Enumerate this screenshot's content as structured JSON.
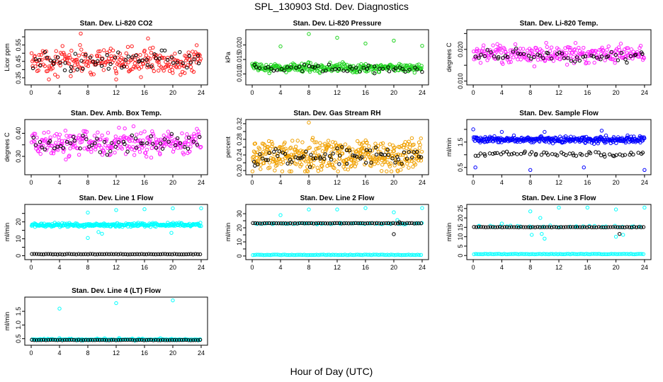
{
  "page": {
    "title": "SPL_130903  Std. Dev. Diagnostics",
    "x_axis_label": "Hour of Day (UTC)"
  },
  "chart_data": [
    {
      "id": "co2",
      "type": "scatter",
      "title": "Stan. Dev. Li-820 CO2",
      "xlabel": "",
      "ylabel": "Licor ppm",
      "xlim": [
        0,
        24
      ],
      "xticks": [
        0,
        4,
        8,
        12,
        16,
        20,
        24
      ],
      "ylim": [
        0.32,
        0.63
      ],
      "yticks": [
        0.35,
        0.4,
        0.45,
        0.5,
        0.55,
        0.6
      ],
      "ytick_labels": [
        "0.35",
        "",
        "0.45",
        "",
        "0.55",
        ""
      ],
      "series": [
        {
          "color": "#ff2020",
          "count": 260,
          "center": 0.45,
          "spread": 0.09,
          "lo": 0.33,
          "hi": 0.56,
          "outliers": [
            [
              7,
              0.62
            ],
            [
              16.5,
              0.59
            ],
            [
              2.5,
              0.34
            ],
            [
              12,
              0.34
            ]
          ]
        },
        {
          "color": "#000000",
          "count": 60,
          "center": 0.45,
          "spread": 0.07,
          "lo": 0.36,
          "hi": 0.53,
          "outliers": []
        }
      ]
    },
    {
      "id": "pressure",
      "type": "scatter",
      "title": "Stan. Dev. Li-820 Pressure",
      "xlabel": "",
      "ylabel": "kPa",
      "xlim": [
        0,
        24
      ],
      "xticks": [
        0,
        4,
        8,
        12,
        16,
        20,
        24
      ],
      "ylim": [
        0.007,
        0.0245
      ],
      "yticks": [
        0.01,
        0.015,
        0.02
      ],
      "ytick_labels": [
        "0.010",
        "0.015",
        "0.020"
      ],
      "series": [
        {
          "color": "#1fd31f",
          "count": 300,
          "center": 0.0122,
          "spread": 0.0018,
          "lo": 0.0088,
          "hi": 0.0145,
          "outliers": [
            [
              0,
              0.0135
            ],
            [
              4,
              0.0195
            ],
            [
              8,
              0.0238
            ],
            [
              12,
              0.0225
            ],
            [
              16,
              0.0205
            ],
            [
              20,
              0.0215
            ],
            [
              24,
              0.0197
            ]
          ]
        },
        {
          "color": "#000000",
          "count": 50,
          "center": 0.0118,
          "spread": 0.0016,
          "lo": 0.009,
          "hi": 0.014,
          "outliers": []
        }
      ]
    },
    {
      "id": "temp",
      "type": "scatter",
      "title": "Stan. Dev. Li-820 Temp.",
      "xlabel": "",
      "ylabel": "degrees C",
      "xlim": [
        0,
        24
      ],
      "xticks": [
        0,
        4,
        8,
        12,
        16,
        20,
        24
      ],
      "ylim": [
        0.0095,
        0.0255
      ],
      "yticks": [
        0.01,
        0.015,
        0.02,
        0.025
      ],
      "ytick_labels": [
        "0.010",
        "",
        "0.020",
        ""
      ],
      "series": [
        {
          "color": "#ff1fff",
          "count": 260,
          "center": 0.0185,
          "spread": 0.0035,
          "lo": 0.01,
          "hi": 0.0255,
          "outliers": []
        },
        {
          "color": "#000000",
          "count": 55,
          "center": 0.018,
          "spread": 0.0025,
          "lo": 0.013,
          "hi": 0.0235,
          "outliers": []
        }
      ]
    },
    {
      "id": "boxtemp",
      "type": "scatter",
      "title": "Stan. Dev. Amb. Box Temp.",
      "xlabel": "",
      "ylabel": "degrees C",
      "xlim": [
        0,
        24
      ],
      "xticks": [
        0,
        4,
        8,
        12,
        16,
        20,
        24
      ],
      "ylim": [
        0.23,
        0.45
      ],
      "yticks": [
        0.3,
        0.35,
        0.4
      ],
      "ytick_labels": [
        "0.30",
        "",
        "0.40"
      ],
      "series": [
        {
          "color": "#ff1fff",
          "count": 280,
          "center": 0.355,
          "spread": 0.07,
          "lo": 0.24,
          "hi": 0.44,
          "outliers": []
        },
        {
          "color": "#000000",
          "count": 55,
          "center": 0.355,
          "spread": 0.05,
          "lo": 0.3,
          "hi": 0.41,
          "outliers": []
        }
      ]
    },
    {
      "id": "rh",
      "type": "scatter",
      "title": "Stan. Dev. Gas Stream RH",
      "xlabel": "",
      "ylabel": "percent",
      "xlim": [
        0,
        24
      ],
      "xticks": [
        0,
        4,
        8,
        12,
        16,
        20,
        24
      ],
      "ylim": [
        0.195,
        0.325
      ],
      "yticks": [
        0.2,
        0.22,
        0.24,
        0.26,
        0.28,
        0.3,
        0.32
      ],
      "ytick_labels": [
        "0.20",
        "",
        "0.24",
        "",
        "0.28",
        "",
        "0.32"
      ],
      "series": [
        {
          "color": "#f0a000",
          "count": 420,
          "center": 0.24,
          "spread": 0.05,
          "lo": 0.198,
          "hi": 0.305,
          "outliers": [
            [
              8,
              0.323
            ]
          ]
        },
        {
          "color": "#000000",
          "count": 70,
          "center": 0.235,
          "spread": 0.03,
          "lo": 0.205,
          "hi": 0.275,
          "outliers": []
        }
      ]
    },
    {
      "id": "sampleflow",
      "type": "scatter",
      "title": "Stan. Dev. Sample Flow",
      "xlabel": "",
      "ylabel": "ml/min",
      "xlim": [
        0,
        24
      ],
      "xticks": [
        0,
        4,
        8,
        12,
        16,
        20,
        24
      ],
      "ylim": [
        0.3,
        2.3
      ],
      "yticks": [
        0.5,
        1.0,
        1.5,
        2.0
      ],
      "ytick_labels": [
        "0.5",
        "",
        "1.5",
        ""
      ],
      "series": [
        {
          "color": "#0000ff",
          "count": 340,
          "center": 1.6,
          "spread": 0.16,
          "lo": 1.4,
          "hi": 1.85,
          "outliers": [
            [
              0,
              2.0
            ],
            [
              0.3,
              0.5
            ],
            [
              8,
              0.4
            ],
            [
              15.5,
              0.5
            ],
            [
              24,
              0.4
            ],
            [
              10,
              1.9
            ],
            [
              4,
              1.9
            ],
            [
              18,
              1.95
            ]
          ]
        },
        {
          "color": "#000000",
          "count": 60,
          "center": 1.03,
          "spread": 0.12,
          "lo": 0.85,
          "hi": 1.25,
          "outliers": []
        }
      ]
    },
    {
      "id": "line1",
      "type": "scatter",
      "title": "Stan. Dev. Line 1 Flow",
      "xlabel": "",
      "ylabel": "ml/min",
      "xlim": [
        0,
        24
      ],
      "xticks": [
        0,
        4,
        8,
        12,
        16,
        20,
        24
      ],
      "ylim": [
        -1,
        29
      ],
      "yticks": [
        0,
        5,
        10,
        15,
        20,
        25
      ],
      "ytick_labels": [
        "0",
        "",
        "10",
        "",
        "20",
        ""
      ],
      "series": [
        {
          "color": "#00ffff",
          "count": 300,
          "center": 18.2,
          "spread": 1.4,
          "lo": 17,
          "hi": 19.5,
          "outliers": [
            [
              8,
              25.5
            ],
            [
              8,
              10.5
            ],
            [
              9.5,
              14
            ],
            [
              10,
              13
            ],
            [
              12,
              27
            ],
            [
              16,
              27.5
            ],
            [
              20,
              28
            ],
            [
              19.8,
              13.5
            ],
            [
              24,
              28
            ]
          ]
        },
        {
          "color": "#000000",
          "count": 0,
          "center": 0.9,
          "spread": 0,
          "lo": 0.9,
          "hi": 0.9,
          "outliers": [],
          "band": 0.9,
          "bandStep": 0.33
        }
      ]
    },
    {
      "id": "line2",
      "type": "scatter",
      "title": "Stan. Dev. Line 2 Flow",
      "xlabel": "",
      "ylabel": "ml/min",
      "xlim": [
        0,
        24
      ],
      "xticks": [
        0,
        4,
        8,
        12,
        16,
        20,
        24
      ],
      "ylim": [
        -1,
        35
      ],
      "yticks": [
        0,
        5,
        10,
        15,
        20,
        25,
        30
      ],
      "ytick_labels": [
        "0",
        "",
        "10",
        "",
        "20",
        "",
        "30"
      ],
      "series": [
        {
          "color": "#00ffff",
          "count": 50,
          "center": 23,
          "spread": 0.6,
          "lo": 22,
          "hi": 24,
          "outliers": [
            [
              4,
              29
            ],
            [
              8,
              33
            ],
            [
              12,
              33
            ],
            [
              16,
              34
            ],
            [
              20,
              31
            ],
            [
              20.5,
              25.5
            ],
            [
              24,
              34
            ]
          ],
          "band": 0.8,
          "bandStep": 0.25
        },
        {
          "color": "#000000",
          "count": 0,
          "center": 23,
          "spread": 0,
          "lo": 23,
          "hi": 23,
          "outliers": [
            [
              20,
              15.5
            ],
            [
              20.8,
              24
            ]
          ],
          "band": 23.2,
          "bandStep": 0.33
        }
      ]
    },
    {
      "id": "line3",
      "type": "scatter",
      "title": "Stan. Dev. Line 3 Flow",
      "xlabel": "",
      "ylabel": "ml/min",
      "xlim": [
        0,
        24
      ],
      "xticks": [
        0,
        4,
        8,
        12,
        16,
        20,
        24
      ],
      "ylim": [
        -1,
        26
      ],
      "yticks": [
        0,
        5,
        10,
        15,
        20,
        25
      ],
      "ytick_labels": [
        "0",
        "5",
        "10",
        "15",
        "20",
        "25"
      ],
      "series": [
        {
          "color": "#00ffff",
          "count": 30,
          "center": 15.5,
          "spread": 0.6,
          "lo": 14.5,
          "hi": 16.5,
          "outliers": [
            [
              4,
              17
            ],
            [
              8,
              23.5
            ],
            [
              8.2,
              11
            ],
            [
              9.4,
              20
            ],
            [
              9.6,
              11.5
            ],
            [
              10,
              9
            ],
            [
              12,
              25.5
            ],
            [
              16,
              25.5
            ],
            [
              20,
              24.5
            ],
            [
              20,
              10
            ],
            [
              21,
              11
            ],
            [
              24,
              25.5
            ]
          ],
          "band": 0.8,
          "bandStep": 0.25
        },
        {
          "color": "#000000",
          "count": 0,
          "center": 15,
          "spread": 0,
          "lo": 15,
          "hi": 15,
          "outliers": [
            [
              20.5,
              11.5
            ]
          ],
          "band": 15.1,
          "bandStep": 0.33
        }
      ]
    },
    {
      "id": "line4",
      "type": "scatter",
      "title": "Stan. Dev. Line 4 (LT) Flow",
      "xlabel": "",
      "ylabel": "ml/min",
      "xlim": [
        0,
        24
      ],
      "xticks": [
        0,
        4,
        8,
        12,
        16,
        20,
        24
      ],
      "ylim": [
        0.33,
        1.95
      ],
      "yticks": [
        0.5,
        1.0,
        1.5
      ],
      "ytick_labels": [
        "0.5",
        "1.0",
        "1.5"
      ],
      "series": [
        {
          "color": "#00ffff",
          "count": 60,
          "center": 0.47,
          "spread": 0.06,
          "lo": 0.43,
          "hi": 0.55,
          "outliers": [
            [
              4,
              1.6
            ],
            [
              12,
              1.8
            ],
            [
              20,
              1.9
            ]
          ],
          "band": 0.47,
          "bandStep": 0.25
        },
        {
          "color": "#000000",
          "count": 0,
          "center": 0.45,
          "spread": 0,
          "lo": 0.45,
          "hi": 0.45,
          "outliers": [],
          "band": 0.45,
          "bandStep": 0.33
        }
      ]
    }
  ]
}
